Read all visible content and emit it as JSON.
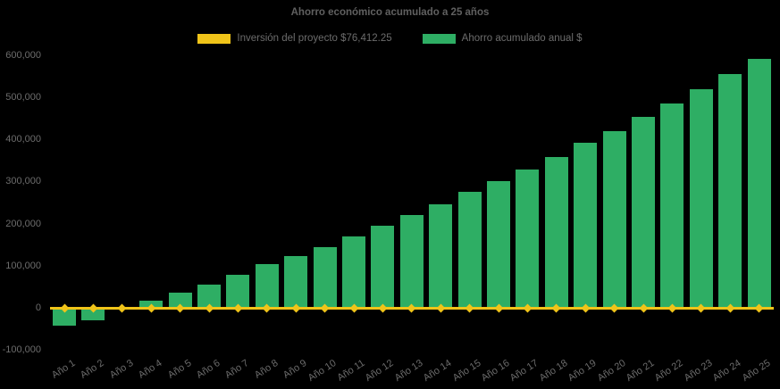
{
  "title": "Ahorro económico acumulado a 25 años",
  "colors": {
    "background": "#000000",
    "bar_green": "#2EAE64",
    "line_yellow": "#F0C419",
    "title_text": "#606060",
    "axis_text": "#6C6C6C",
    "legend_text": "#6C6C6C"
  },
  "legend": [
    {
      "label": "Inversión del proyecto $76,412.25",
      "color": "#F0C419",
      "swatch": "yellow-rect"
    },
    {
      "label": "Ahorro acumulado anual $",
      "color": "#2EAE64",
      "swatch": "green-rect"
    }
  ],
  "chart_data": {
    "type": "bar",
    "title": "Ahorro económico acumulado a 25 años",
    "xlabel": "",
    "ylabel": "",
    "categories": [
      "Año 1",
      "Año 2",
      "Año 3",
      "Año 4",
      "Año 5",
      "Año 6",
      "Año 7",
      "Año 8",
      "Año 9",
      "Año 10",
      "Año 11",
      "Año 12",
      "Año 13",
      "Año 14",
      "Año 15",
      "Año 16",
      "Año 17",
      "Año 18",
      "Año 19",
      "Año 20",
      "Año 21",
      "Año 22",
      "Año 23",
      "Año 24",
      "Año 25"
    ],
    "series": [
      {
        "name": "Inversión del proyecto $76,412.25",
        "type": "line",
        "color": "#F0C419",
        "marker": "diamond",
        "values": [
          0,
          0,
          0,
          0,
          0,
          0,
          0,
          0,
          0,
          0,
          0,
          0,
          0,
          0,
          0,
          0,
          0,
          0,
          0,
          0,
          0,
          0,
          0,
          0,
          0
        ]
      },
      {
        "name": "Ahorro acumulado anual $",
        "type": "bar",
        "color": "#2EAE64",
        "values": [
          -41000,
          -27000,
          2000,
          16000,
          35000,
          56000,
          78000,
          103000,
          123000,
          144000,
          170000,
          195000,
          220000,
          246000,
          275000,
          301000,
          329000,
          358000,
          391000,
          419000,
          454000,
          485000,
          520000,
          556000,
          592000
        ]
      }
    ],
    "ylim": [
      -100000,
      600000
    ],
    "ytick_step": 100000,
    "yticks": [
      {
        "value": 600000,
        "label": "600,000"
      },
      {
        "value": 500000,
        "label": "500,000"
      },
      {
        "value": 400000,
        "label": "400,000"
      },
      {
        "value": 300000,
        "label": "300,000"
      },
      {
        "value": 200000,
        "label": "200,000"
      },
      {
        "value": 100000,
        "label": "100,000"
      },
      {
        "value": 0,
        "label": "0"
      },
      {
        "value": -100000,
        "label": "-100,000"
      }
    ],
    "grid": false,
    "legend_position": "top-center"
  }
}
